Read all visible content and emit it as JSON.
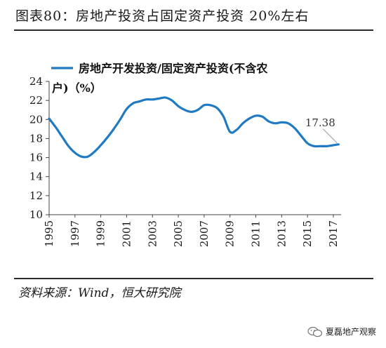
{
  "figure": {
    "title": "图表80：房地产投资占固定资产投资 20%左右",
    "source": "资料来源：Wind，恒大研究院",
    "watermark": "夏磊地产观察"
  },
  "colors": {
    "series": "#1f7ac3",
    "axis": "#444444",
    "annotation_line": "#aaaaaa"
  },
  "chart_data": {
    "type": "line",
    "title": "",
    "xlabel": "",
    "ylabel": "",
    "ylim": [
      10,
      24
    ],
    "yticks": [
      10,
      12,
      14,
      16,
      18,
      20,
      22,
      24
    ],
    "xlim": [
      1995,
      2017.6
    ],
    "xticks": [
      "1995",
      "1997",
      "1999",
      "2001",
      "2003",
      "2005",
      "2007",
      "2009",
      "2011",
      "2013",
      "2015",
      "2017"
    ],
    "grid": false,
    "legend": "top-left",
    "series": [
      {
        "name": "房地产开发投资/固定资产投资(不含农户)（%）",
        "x": [
          1995,
          1995.5,
          1996,
          1996.5,
          1997,
          1997.5,
          1998,
          1998.5,
          1999,
          1999.5,
          2000,
          2000.5,
          2001,
          2001.5,
          2002,
          2002.5,
          2003,
          2003.5,
          2004,
          2004.5,
          2005,
          2005.5,
          2006,
          2006.5,
          2007,
          2007.5,
          2008,
          2008.5,
          2009,
          2009.5,
          2010,
          2010.5,
          2011,
          2011.5,
          2012,
          2012.5,
          2013,
          2013.5,
          2014,
          2014.5,
          2015,
          2015.5,
          2016,
          2016.5,
          2017,
          2017.4
        ],
        "values": [
          20.1,
          19.2,
          18.2,
          17.2,
          16.5,
          16.1,
          16.1,
          16.6,
          17.3,
          18.1,
          19.0,
          20.0,
          21.1,
          21.7,
          21.9,
          22.1,
          22.1,
          22.2,
          22.3,
          22.0,
          21.4,
          21.0,
          20.8,
          21.0,
          21.5,
          21.5,
          21.2,
          20.3,
          18.7,
          18.9,
          19.6,
          20.1,
          20.4,
          20.3,
          19.8,
          19.6,
          19.7,
          19.6,
          19.1,
          18.3,
          17.5,
          17.2,
          17.2,
          17.2,
          17.3,
          17.38
        ]
      }
    ],
    "annotations": [
      {
        "text": "17.38",
        "x": 2017.4,
        "y": 17.38
      }
    ]
  }
}
